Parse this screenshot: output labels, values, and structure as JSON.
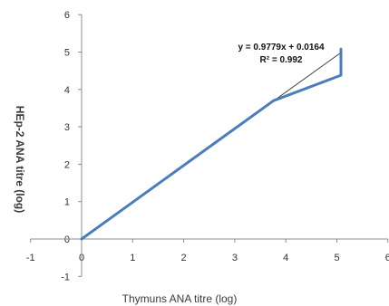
{
  "chart_data": {
    "type": "line",
    "xlabel": "Thymuns ANA titre (log)",
    "ylabel": "HEp-2 ANA titre (log)",
    "xlim": [
      -1,
      6
    ],
    "ylim": [
      -1,
      6
    ],
    "x_ticks": [
      "-1",
      "0",
      "1",
      "2",
      "3",
      "4",
      "5",
      "6"
    ],
    "y_ticks": [
      "-1",
      "0",
      "1",
      "2",
      "3",
      "4",
      "5",
      "6"
    ],
    "grid": false,
    "series": [
      {
        "color": "#4a7ebb",
        "points": [
          [
            0,
            0
          ],
          [
            3.76,
            3.7
          ],
          [
            5.08,
            4.38
          ],
          [
            5.08,
            5.08
          ]
        ]
      }
    ],
    "trendline": {
      "color": "#404040",
      "slope": 0.9779,
      "intercept": 0.0164,
      "x_range": [
        0,
        5.08
      ]
    },
    "annotations": {
      "equation": "y = 0.9779x + 0.0164",
      "r_squared": "R² = 0.992"
    }
  }
}
